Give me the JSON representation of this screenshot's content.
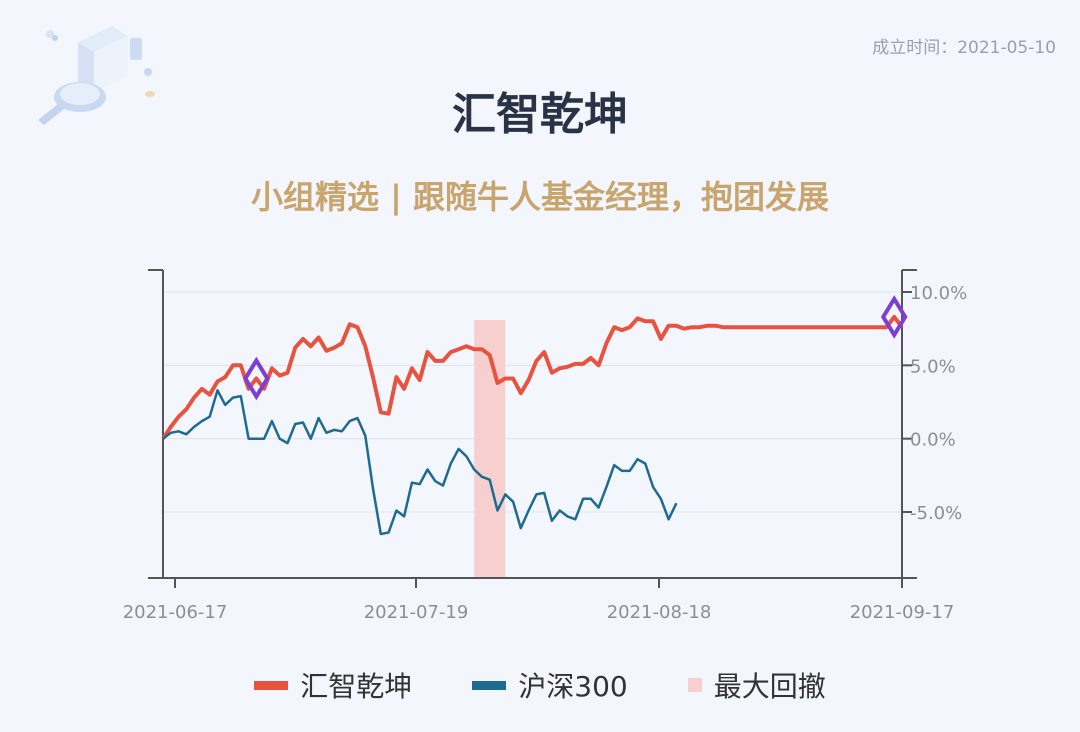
{
  "header": {
    "founded_label": "成立时间：2021-05-10",
    "title": "汇智乾坤",
    "subtitle": "小组精选 | 跟随牛人基金经理，抱团发展"
  },
  "legend": {
    "items": [
      {
        "label": "汇智乾坤",
        "color": "#e8533f"
      },
      {
        "label": "沪深300",
        "color": "#1f6a92"
      },
      {
        "label": "最大回撤",
        "color": "#f8cfcf"
      }
    ]
  },
  "chart_data": {
    "type": "line",
    "x_ticks": [
      "2021-06-17",
      "2021-07-19",
      "2021-08-18",
      "2021-09-17"
    ],
    "y_ticks": [
      "10.0%",
      "5.0%",
      "0.0%",
      "-5.0%"
    ],
    "y_tick_values": [
      10,
      5,
      0,
      -5
    ],
    "ylim": [
      -9.5,
      11.5
    ],
    "y_axis_side": "right",
    "grid": true,
    "legend_position": "bottom",
    "max_drawdown": {
      "start_index": 40,
      "end_index": 44,
      "color": "#f8cfcf"
    },
    "markers": [
      {
        "series": "汇智乾坤",
        "index": 12,
        "color": "#7b3fd6",
        "shape": "diamond"
      },
      {
        "series": "汇智乾坤",
        "index": 94,
        "color": "#7b3fd6",
        "shape": "diamond"
      }
    ],
    "series": [
      {
        "name": "汇智乾坤",
        "color": "#e8533f",
        "values": [
          0.0,
          0.8,
          1.5,
          2.0,
          2.8,
          3.4,
          3.0,
          3.9,
          4.2,
          5.0,
          5.0,
          3.4,
          4.1,
          3.4,
          4.8,
          4.3,
          4.5,
          6.2,
          6.8,
          6.3,
          6.9,
          6.0,
          6.2,
          6.5,
          7.8,
          7.6,
          6.3,
          4.2,
          1.8,
          1.7,
          4.2,
          3.4,
          4.8,
          4.0,
          5.9,
          5.3,
          5.3,
          5.9,
          6.1,
          6.3,
          6.1,
          6.1,
          5.7,
          3.8,
          4.1,
          4.1,
          3.1,
          4.0,
          5.3,
          5.9,
          4.5,
          4.8,
          4.9,
          5.1,
          5.1,
          5.5,
          5.0,
          6.5,
          7.6,
          7.4,
          7.6,
          8.2,
          8.0,
          8.0,
          6.8,
          7.7,
          7.7,
          7.5,
          7.6,
          7.6,
          7.7,
          7.7,
          7.6,
          7.6,
          7.6,
          7.6,
          7.6,
          7.6,
          7.6,
          7.6,
          7.6,
          7.6,
          7.6,
          7.6,
          7.6,
          7.6,
          7.6,
          7.6,
          7.6,
          7.6,
          7.6,
          7.6,
          7.6,
          7.6,
          8.3,
          7.6
        ],
        "note": ""
      },
      {
        "name": "沪深300",
        "color": "#1f6a92",
        "values": [
          0.0,
          0.4,
          0.5,
          0.3,
          0.8,
          1.2,
          1.5,
          3.3,
          2.3,
          2.8,
          2.9,
          0.0,
          0.0,
          0.0,
          1.2,
          0.0,
          -0.3,
          1.0,
          1.1,
          0.0,
          1.4,
          0.4,
          0.6,
          0.5,
          1.2,
          1.4,
          0.2,
          -3.4,
          -6.5,
          -6.4,
          -4.9,
          -5.3,
          -3.0,
          -3.1,
          -2.1,
          -2.9,
          -3.2,
          -1.7,
          -0.7,
          -1.2,
          -2.1,
          -2.6,
          -2.8,
          -4.9,
          -3.8,
          -4.3,
          -6.1,
          -4.9,
          -3.8,
          -3.7,
          -5.6,
          -4.9,
          -5.3,
          -5.5,
          -4.1,
          -4.1,
          -4.7,
          -3.3,
          -1.8,
          -2.2,
          -2.2,
          -1.4,
          -1.7,
          -3.3,
          -4.1,
          -5.5,
          -4.4
        ]
      }
    ]
  }
}
